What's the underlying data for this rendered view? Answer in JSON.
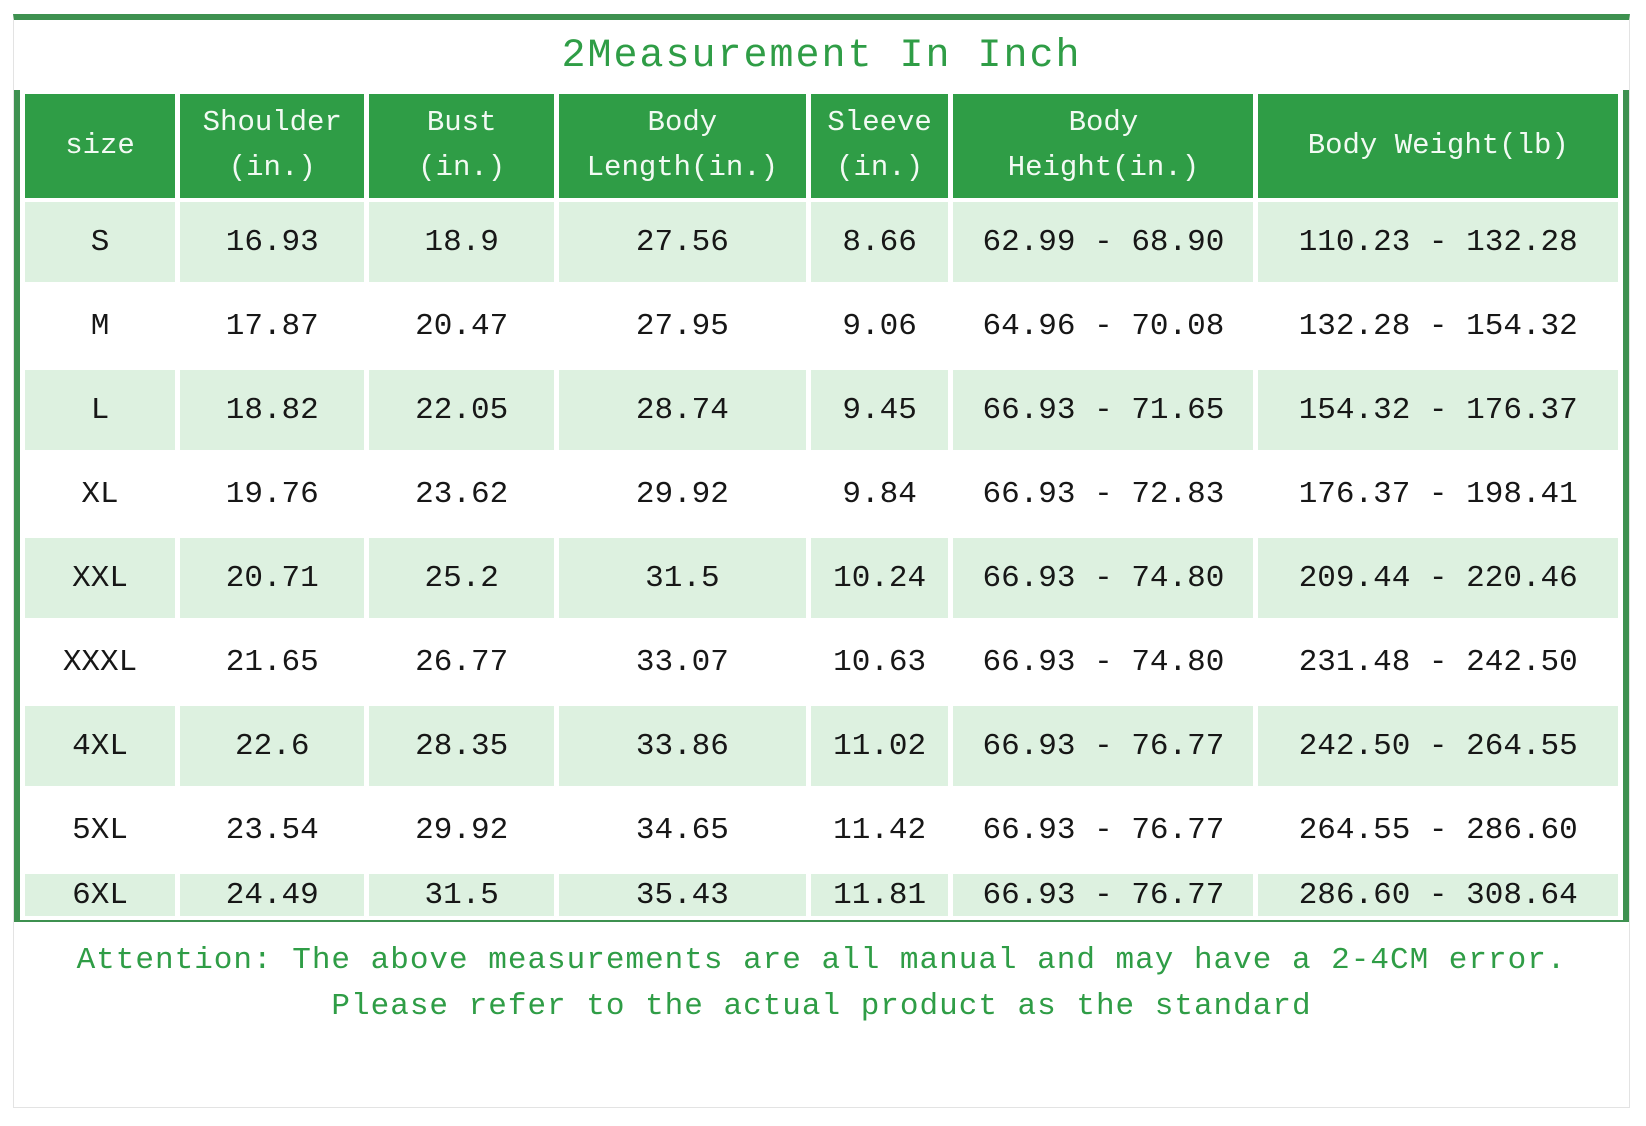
{
  "chart_data": {
    "type": "table",
    "title": "2Measurement In Inch",
    "columns": [
      "size",
      "Shoulder\n(in.)",
      "Bust\n(in.)",
      "Body\nLength(in.)",
      "Sleeve\n(in.)",
      "Body\nHeight(in.)",
      "Body Weight(lb)"
    ],
    "rows": [
      [
        "S",
        "16.93",
        "18.9",
        "27.56",
        "8.66",
        "62.99 - 68.90",
        "110.23 - 132.28"
      ],
      [
        "M",
        "17.87",
        "20.47",
        "27.95",
        "9.06",
        "64.96 - 70.08",
        "132.28 - 154.32"
      ],
      [
        "L",
        "18.82",
        "22.05",
        "28.74",
        "9.45",
        "66.93 - 71.65",
        "154.32 - 176.37"
      ],
      [
        "XL",
        "19.76",
        "23.62",
        "29.92",
        "9.84",
        "66.93 - 72.83",
        "176.37 - 198.41"
      ],
      [
        "XXL",
        "20.71",
        "25.2",
        "31.5",
        "10.24",
        "66.93 - 74.80",
        "209.44 - 220.46"
      ],
      [
        "XXXL",
        "21.65",
        "26.77",
        "33.07",
        "10.63",
        "66.93 - 74.80",
        "231.48 - 242.50"
      ],
      [
        "4XL",
        "22.6",
        "28.35",
        "33.86",
        "11.02",
        "66.93 - 76.77",
        "242.50 - 264.55"
      ],
      [
        "5XL",
        "23.54",
        "29.92",
        "34.65",
        "11.42",
        "66.93 - 76.77",
        "264.55 - 286.60"
      ],
      [
        "6XL",
        "24.49",
        "31.5",
        "35.43",
        "11.81",
        "66.93 - 76.77",
        "286.60 - 308.64"
      ]
    ],
    "layout_hints": {
      "row_striping": "odd rows light green, even rows white",
      "header_position": "top"
    }
  },
  "attention": {
    "line1": "Attention: The above measurements are all manual and may have a 2-4CM error.",
    "line2": "Please refer to the actual product as the standard"
  },
  "colors": {
    "header_green": "#2f9d46",
    "border_green": "#3e9150",
    "row_light_green": "#ddf1e0",
    "title_text_green": "#2f9d46",
    "attention_text_green": "#2f9d46",
    "body_text": "#171717",
    "outer_border_gray": "#e3e3e3",
    "header_text": "#f2faf3"
  }
}
